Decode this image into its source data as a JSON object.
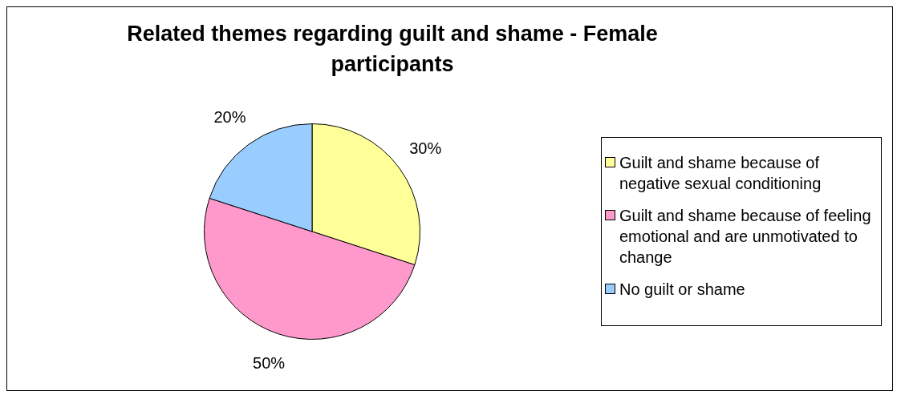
{
  "chart_data": {
    "type": "pie",
    "title": "Related themes regarding guilt and shame - Female participants",
    "categories": [
      "Guilt and shame because of negative sexual conditioning",
      "Guilt and shame because of feeling emotional and are unmotivated to change",
      "No guilt or shame"
    ],
    "values": [
      30,
      50,
      20
    ],
    "colors": [
      "#ffff99",
      "#ff99cc",
      "#99ccff"
    ],
    "value_labels": [
      "30%",
      "50%",
      "20%"
    ],
    "legend": "right"
  }
}
